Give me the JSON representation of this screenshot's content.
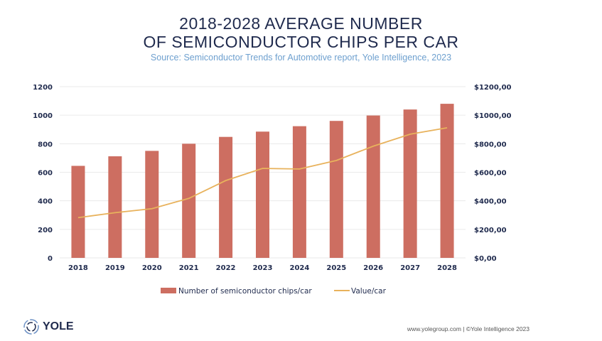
{
  "chart_data": {
    "type": "bar",
    "title": "2018-2028 AVERAGE NUMBER OF SEMICONDUCTOR CHIPS PER CAR",
    "title_lines": [
      "2018-2028 AVERAGE NUMBER",
      "OF SEMICONDUCTOR CHIPS PER CAR"
    ],
    "subtitle": "Source: Semiconductor Trends for Automotive report, Yole Intelligence, 2023",
    "categories": [
      "2018",
      "2019",
      "2020",
      "2021",
      "2022",
      "2023",
      "2024",
      "2025",
      "2026",
      "2027",
      "2028"
    ],
    "series": [
      {
        "name": "Number of semiconductor chips/car",
        "type": "bar",
        "axis": "left",
        "color": "#cd6e61",
        "values": [
          645,
          712,
          750,
          800,
          848,
          885,
          923,
          960,
          998,
          1040,
          1080
        ]
      },
      {
        "name": "Value/car",
        "type": "line",
        "axis": "right",
        "color": "#e8b25c",
        "values": [
          282,
          317,
          345,
          417,
          542,
          627,
          623,
          683,
          783,
          867,
          912
        ]
      }
    ],
    "ylim": [
      0,
      1200
    ],
    "y_ticks": [
      "0",
      "200",
      "400",
      "600",
      "800",
      "1000",
      "1200"
    ],
    "y2lim": [
      0,
      1200
    ],
    "y2_ticks": [
      "$0,00",
      "$200,00",
      "$400,00",
      "$600,00",
      "$800,00",
      "$1000,00",
      "$1200,00"
    ],
    "grid": true,
    "legend_position": "bottom"
  },
  "footer": {
    "logo": "YOLE",
    "text": "www.yolegroup.com | ©Yole Intelligence 2023"
  }
}
